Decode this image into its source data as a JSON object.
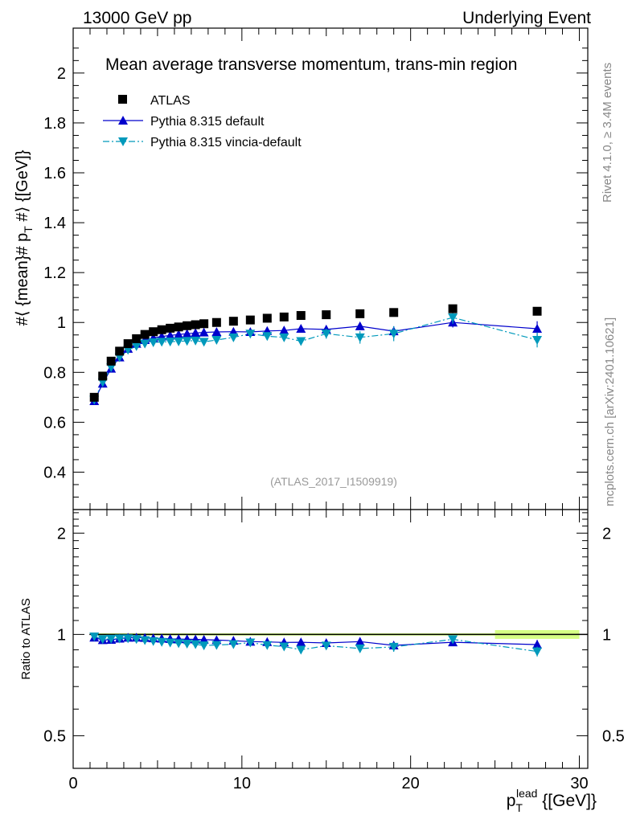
{
  "header": {
    "left": "13000 GeV pp",
    "right": "Underlying Event"
  },
  "side": {
    "rivet": "Rivet 4.1.0, ≥ 3.4M events",
    "mcplots": "mcplots.cern.ch [arXiv:2401.10621]"
  },
  "chart_data": [
    {
      "type": "scatter",
      "title": "Mean average transverse momentum, trans-min region",
      "ylabel": "#⟨ {mean}# p_T #⟩ {[GeV]}",
      "ylabel_main": "#⟨ {mean}# p",
      "ylabel_sub": "T",
      "ylabel_tail": " #⟩ {[GeV]}",
      "watermark": "(ATLAS_2017_I1509919)",
      "xlim": [
        0,
        30.5
      ],
      "ylim": [
        0.25,
        2.18
      ],
      "yticks": [
        0.4,
        0.6,
        0.8,
        1,
        1.2,
        1.4,
        1.6,
        1.8,
        2
      ],
      "ytick_labels": [
        "0.4",
        "0.6",
        "0.8",
        "1",
        "1.2",
        "1.4",
        "1.6",
        "1.8",
        "2"
      ],
      "x": [
        1.25,
        1.75,
        2.25,
        2.75,
        3.25,
        3.75,
        4.25,
        4.75,
        5.25,
        5.75,
        6.25,
        6.75,
        7.25,
        7.75,
        8.5,
        9.5,
        10.5,
        11.5,
        12.5,
        13.5,
        15,
        17,
        19,
        22.5,
        27.5
      ],
      "series": [
        {
          "name": "ATLAS",
          "color": "#000000",
          "marker": "square",
          "values": [
            0.7,
            0.785,
            0.845,
            0.885,
            0.915,
            0.935,
            0.952,
            0.963,
            0.971,
            0.977,
            0.982,
            0.987,
            0.991,
            0.995,
            1.0,
            1.005,
            1.01,
            1.017,
            1.022,
            1.028,
            1.031,
            1.035,
            1.04,
            1.055,
            1.045
          ]
        },
        {
          "name": "Pythia 8.315 default",
          "color": "#0000cc",
          "marker": "triangle-up",
          "line": "solid",
          "values": [
            0.685,
            0.755,
            0.815,
            0.86,
            0.895,
            0.915,
            0.93,
            0.938,
            0.944,
            0.948,
            0.952,
            0.955,
            0.958,
            0.96,
            0.962,
            0.963,
            0.962,
            0.966,
            0.968,
            0.975,
            0.972,
            0.985,
            0.965,
            1.0,
            0.975
          ],
          "errors": [
            0.005,
            0.005,
            0.005,
            0.005,
            0.005,
            0.005,
            0.005,
            0.005,
            0.005,
            0.005,
            0.005,
            0.005,
            0.005,
            0.005,
            0.006,
            0.006,
            0.008,
            0.008,
            0.01,
            0.01,
            0.012,
            0.015,
            0.02,
            0.02,
            0.03
          ]
        },
        {
          "name": "Pythia 8.315 vincia-default",
          "color": "#0099bb",
          "marker": "triangle-down",
          "line": "dashdot",
          "values": [
            0.69,
            0.76,
            0.82,
            0.86,
            0.89,
            0.905,
            0.915,
            0.92,
            0.922,
            0.923,
            0.924,
            0.926,
            0.927,
            0.922,
            0.93,
            0.94,
            0.955,
            0.945,
            0.94,
            0.925,
            0.955,
            0.94,
            0.955,
            1.02,
            0.93
          ]
        },
        {
          "name": "",
          "color": "#0099bb",
          "marker": "none",
          "values": [],
          "errors": [
            0.005,
            0.005,
            0.005,
            0.005,
            0.005,
            0.006,
            0.006,
            0.006,
            0.007,
            0.007,
            0.008,
            0.008,
            0.009,
            0.009,
            0.01,
            0.012,
            0.012,
            0.014,
            0.015,
            0.016,
            0.02,
            0.025,
            0.03,
            0.025,
            0.03
          ]
        }
      ]
    },
    {
      "type": "scatter",
      "ylabel": "Ratio to ATLAS",
      "xlabel": "p_T^lead {[GeV]}",
      "xlabel_main": "p",
      "xlabel_sub": "T",
      "xlabel_sup": "lead",
      "xlabel_tail": " {[GeV]}",
      "xlim": [
        0,
        30.5
      ],
      "ylim": [
        0.4,
        2.35
      ],
      "yscale": "log",
      "yticks": [
        0.5,
        1,
        2
      ],
      "ytick_labels": [
        "0.5",
        "1",
        "2"
      ],
      "xticks": [
        0,
        10,
        20,
        30
      ],
      "xtick_labels": [
        "0",
        "10",
        "20",
        "30"
      ],
      "band_color": "#ccff66",
      "band_x": [
        25,
        30
      ],
      "band_halfwidth": 0.03,
      "series": [
        {
          "name": "Pythia 8.315 default",
          "color": "#0000cc",
          "values": [
            0.979,
            0.962,
            0.964,
            0.972,
            0.978,
            0.979,
            0.977,
            0.974,
            0.972,
            0.97,
            0.969,
            0.968,
            0.967,
            0.965,
            0.962,
            0.958,
            0.952,
            0.95,
            0.947,
            0.948,
            0.943,
            0.952,
            0.928,
            0.948,
            0.933
          ]
        },
        {
          "name": "Pythia 8.315 vincia-default",
          "color": "#0099bb",
          "values": [
            0.986,
            0.968,
            0.97,
            0.972,
            0.973,
            0.968,
            0.961,
            0.955,
            0.95,
            0.945,
            0.941,
            0.938,
            0.935,
            0.927,
            0.93,
            0.935,
            0.946,
            0.929,
            0.92,
            0.9,
            0.926,
            0.908,
            0.918,
            0.967,
            0.89
          ]
        }
      ]
    }
  ]
}
